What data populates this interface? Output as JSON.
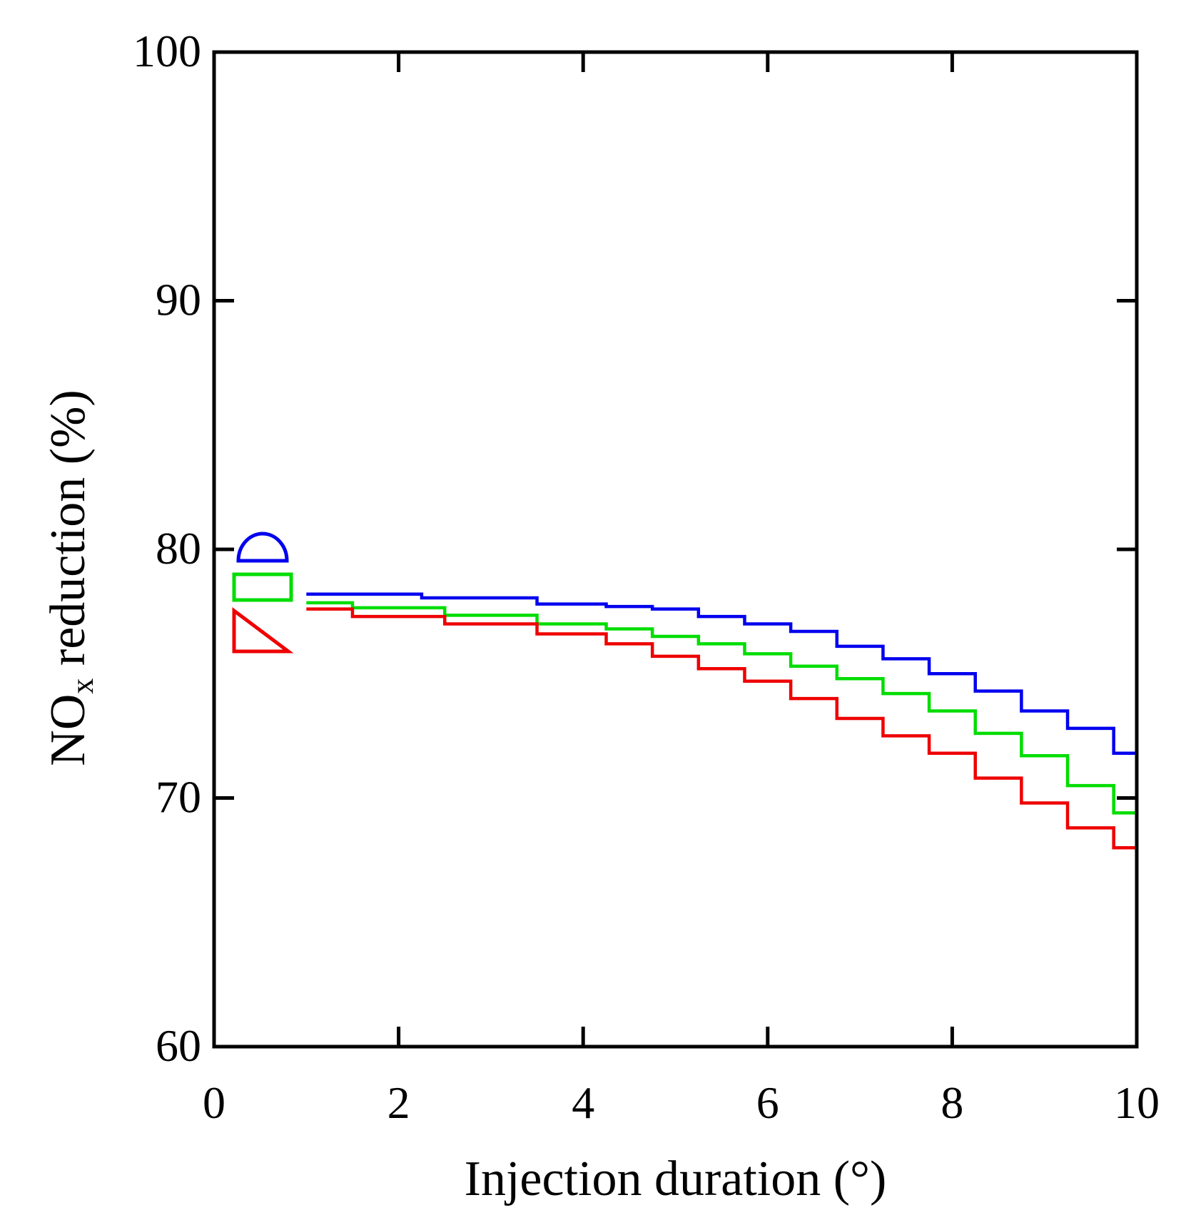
{
  "chart_data": {
    "type": "line",
    "title": "",
    "xlabel": "Injection duration (°)",
    "ylabel_main": "NO",
    "ylabel_sub": "x",
    "ylabel_rest": " reduction (%)",
    "xlim": [
      0,
      10
    ],
    "ylim": [
      60,
      100
    ],
    "xticks": [
      0,
      2,
      4,
      6,
      8,
      10
    ],
    "yticks": [
      60,
      70,
      80,
      90,
      100
    ],
    "grid": false,
    "legend": {
      "position": "top-left",
      "entries": [
        {
          "name": "half-circle",
          "shape": "semicircle",
          "color": "#0000ee"
        },
        {
          "name": "rectangle",
          "shape": "rectangle",
          "color": "#00dd00"
        },
        {
          "name": "triangle",
          "shape": "triangle",
          "color": "#ee0000"
        }
      ]
    },
    "series": [
      {
        "name": "half-circle",
        "color": "#0000ee",
        "x": [
          1,
          2,
          2.5,
          3,
          4,
          4.5,
          5,
          5.5,
          6,
          6.5,
          7,
          7.5,
          8,
          8.5,
          9,
          9.5,
          10
        ],
        "values": [
          78.2,
          78.2,
          78.05,
          78.05,
          77.8,
          77.7,
          77.6,
          77.3,
          77.0,
          76.7,
          76.1,
          75.6,
          75.0,
          74.3,
          73.5,
          72.8,
          71.8
        ]
      },
      {
        "name": "rectangle",
        "color": "#00dd00",
        "x": [
          1,
          2,
          3,
          4,
          4.5,
          5,
          5.5,
          6,
          6.5,
          7,
          7.5,
          8,
          8.5,
          9,
          9.5,
          10
        ],
        "values": [
          77.85,
          77.65,
          77.35,
          77.0,
          76.8,
          76.5,
          76.2,
          75.8,
          75.3,
          74.8,
          74.2,
          73.5,
          72.6,
          71.7,
          70.5,
          69.4
        ]
      },
      {
        "name": "triangle",
        "color": "#ee0000",
        "x": [
          1,
          2,
          3,
          4,
          4.5,
          5,
          5.5,
          6,
          6.5,
          7,
          7.5,
          8,
          8.5,
          9,
          9.5,
          10
        ],
        "values": [
          77.6,
          77.3,
          77.0,
          76.6,
          76.2,
          75.7,
          75.2,
          74.7,
          74.0,
          73.2,
          72.5,
          71.8,
          70.8,
          69.8,
          68.8,
          68.0
        ]
      }
    ]
  }
}
